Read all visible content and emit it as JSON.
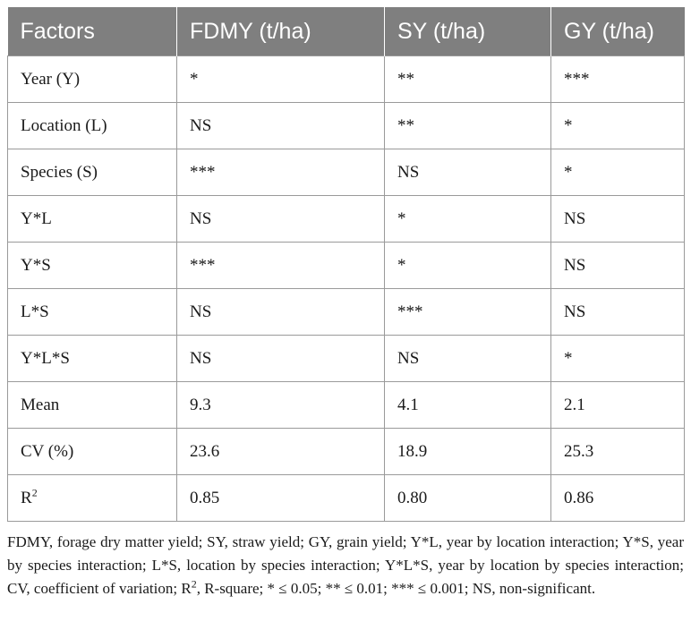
{
  "table": {
    "headers": [
      "Factors",
      "FDMY (t/ha)",
      "SY (t/ha)",
      "GY (t/ha)"
    ],
    "rows": [
      [
        "Year (Y)",
        "*",
        "**",
        "***"
      ],
      [
        "Location (L)",
        "NS",
        "**",
        "*"
      ],
      [
        "Species (S)",
        "***",
        "NS",
        "*"
      ],
      [
        "Y*L",
        "NS",
        "*",
        "NS"
      ],
      [
        "Y*S",
        "***",
        "*",
        "NS"
      ],
      [
        "L*S",
        "NS",
        "***",
        "NS"
      ],
      [
        "Y*L*S",
        "NS",
        "NS",
        "*"
      ],
      [
        "Mean",
        "9.3",
        "4.1",
        "2.1"
      ],
      [
        "CV (%)",
        "23.6",
        "18.9",
        "25.3"
      ],
      [
        "R",
        "0.85",
        "0.80",
        "0.86"
      ]
    ],
    "r2_superscript": "2"
  },
  "footnote": {
    "part1": "FDMY, forage dry matter yield; SY, straw yield; GY, grain yield; Y*L, year by location interaction; Y*S, year by species interaction; L*S, location by species interaction; Y*L*S, year by location by species interaction; CV, coefficient of variation; R",
    "sup": "2",
    "part2": ", R-square; * ≤ 0.05; ** ≤ 0.01; *** ≤ 0.001; NS, non-significant."
  }
}
